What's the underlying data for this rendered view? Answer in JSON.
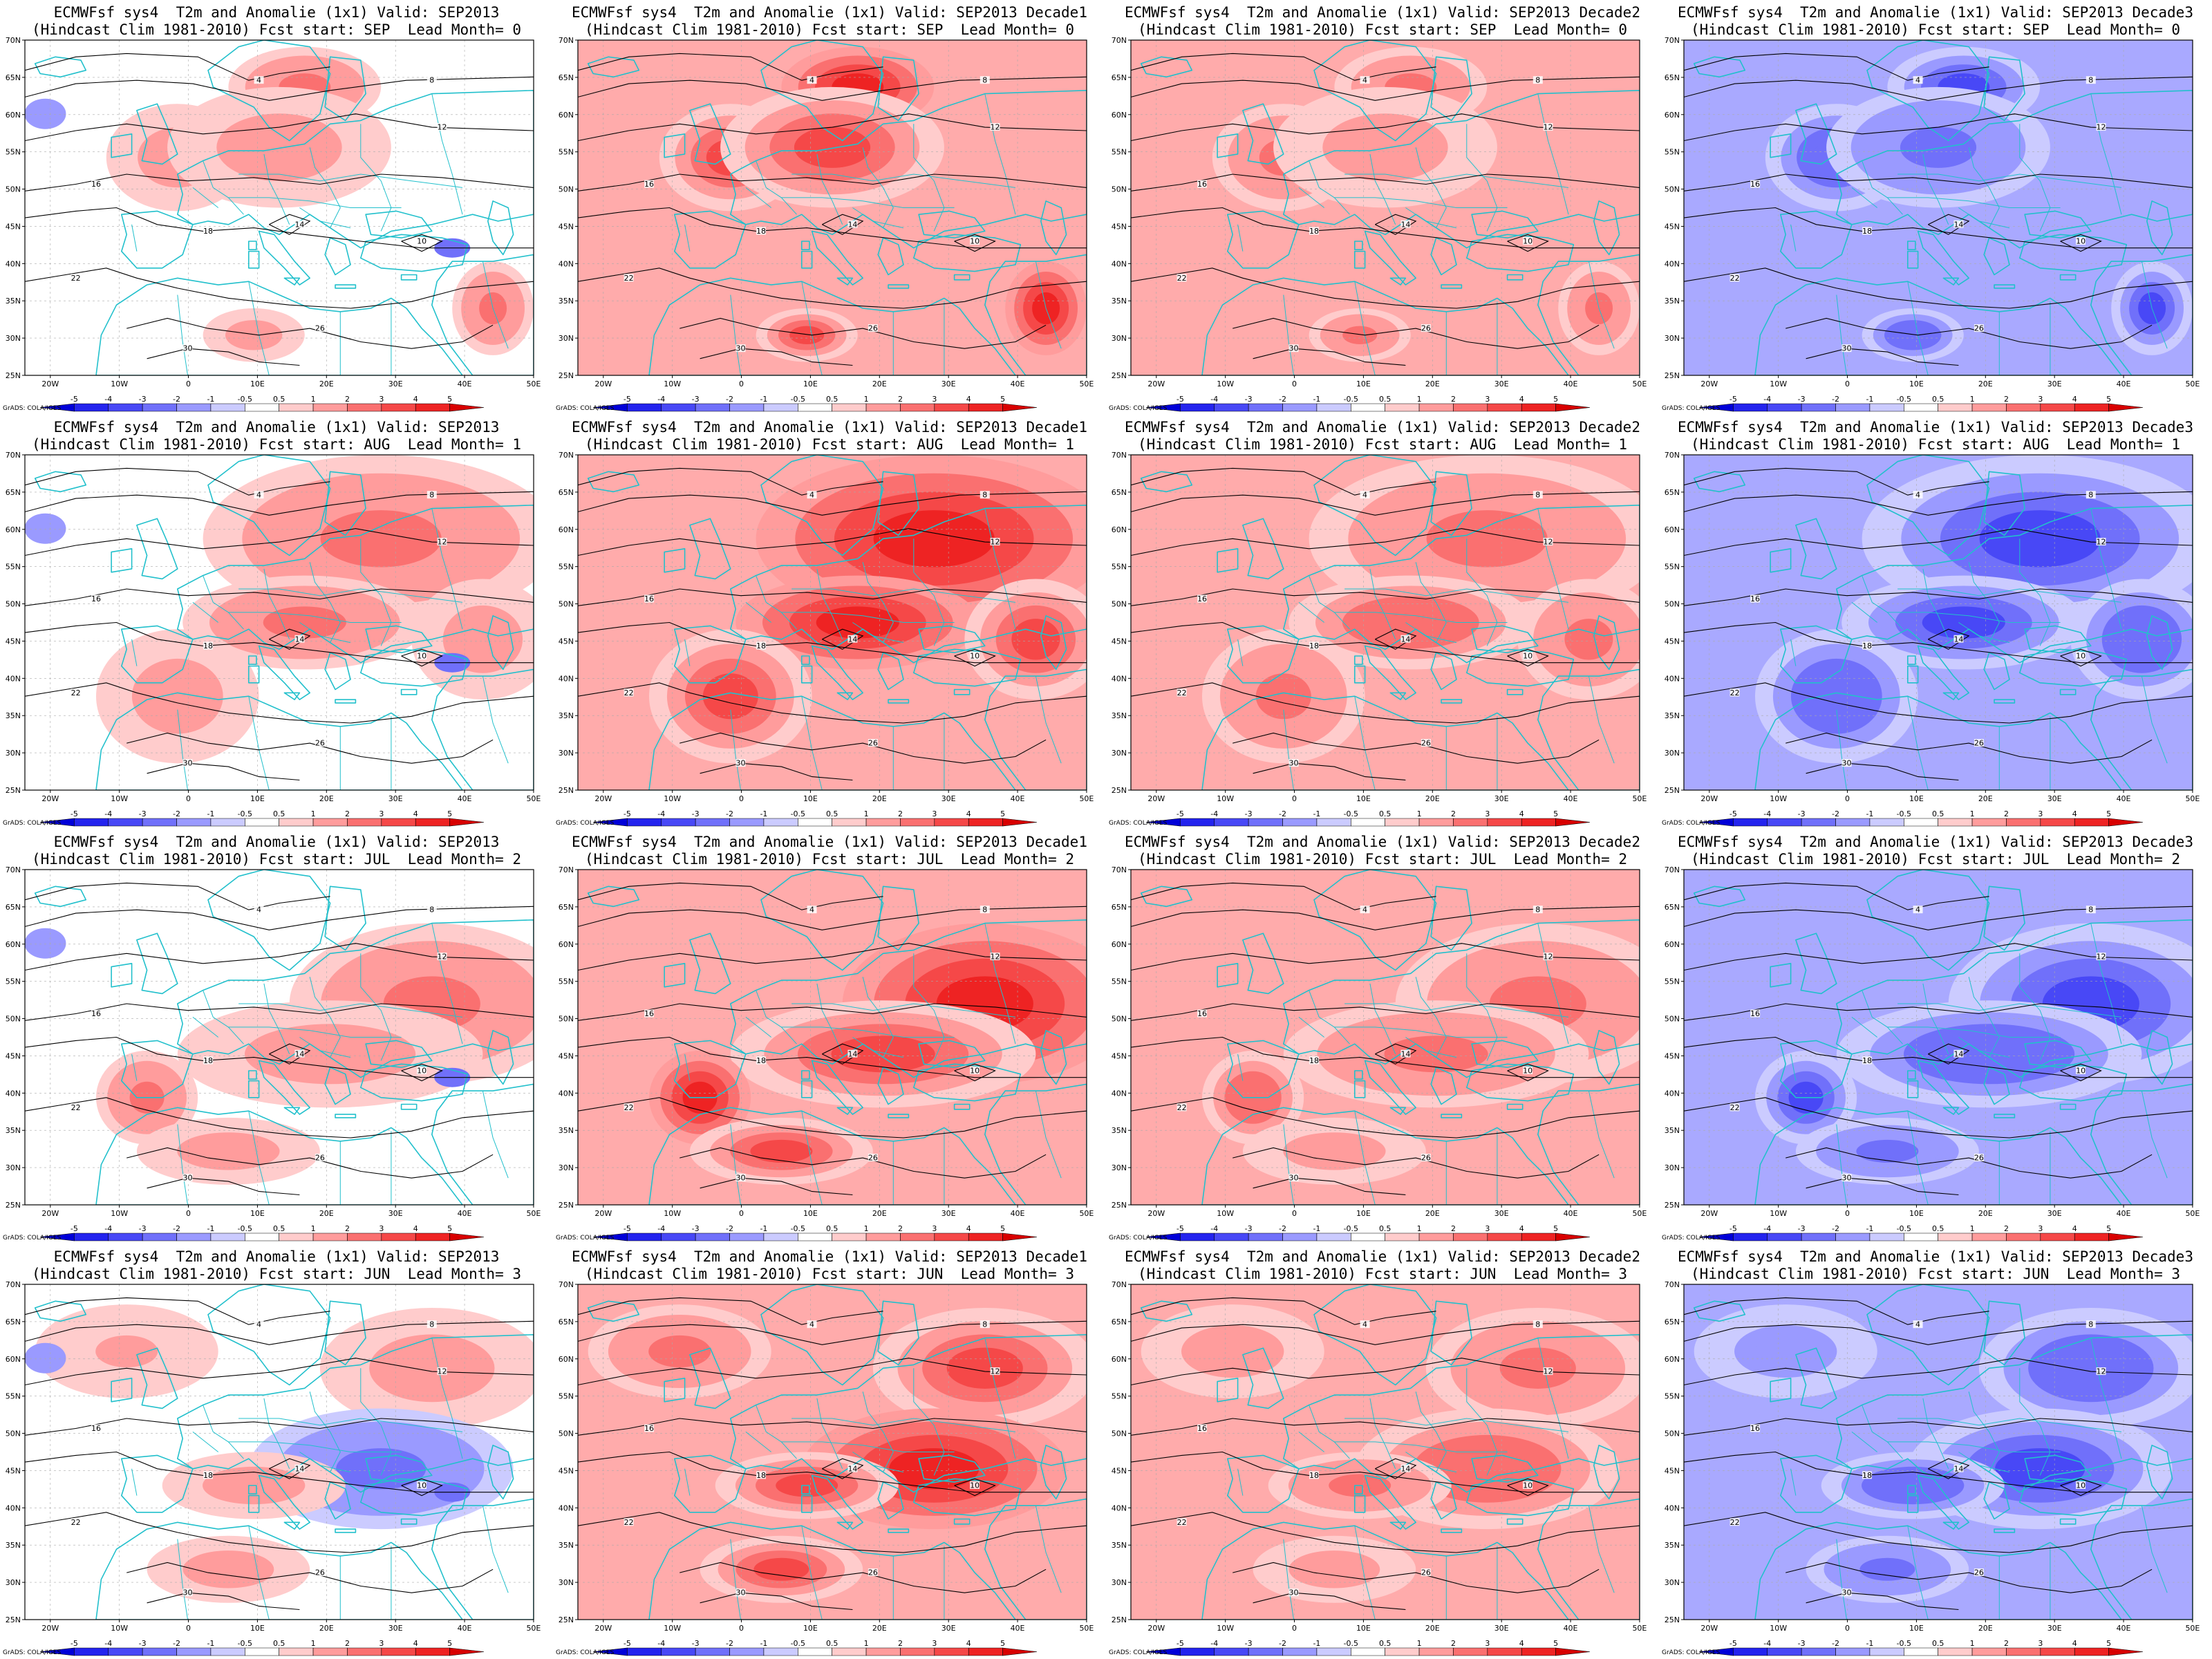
{
  "figure": {
    "line1_prefix": "ECMWFsf sys4  T2m and Anomalie (1x1) Valid: ",
    "line2_prefix": "(Hindcast Clim 1981-2010) Fcst start: ",
    "lead_prefix": "  Lead Month= ",
    "credit": "GrADS: COLA/IGES"
  },
  "columns": [
    {
      "valid": "SEP2013",
      "anomaly_sign": "mixed",
      "intensity": 0.55
    },
    {
      "valid": "SEP2013 Decade1",
      "anomaly_sign": "warm",
      "intensity": 1.0
    },
    {
      "valid": "SEP2013 Decade2",
      "anomaly_sign": "warm",
      "intensity": 0.6
    },
    {
      "valid": "SEP2013 Decade3",
      "anomaly_sign": "cold",
      "intensity": 0.8
    }
  ],
  "rows": [
    {
      "fcst_start": "SEP",
      "lead_month": "0"
    },
    {
      "fcst_start": "AUG",
      "lead_month": "1"
    },
    {
      "fcst_start": "JUL",
      "lead_month": "2"
    },
    {
      "fcst_start": "JUN",
      "lead_month": "3"
    }
  ],
  "axes": {
    "lat_labels": [
      "70N",
      "65N",
      "60N",
      "55N",
      "50N",
      "45N",
      "40N",
      "35N",
      "30N",
      "25N"
    ],
    "lon_labels": [
      "20W",
      "10W",
      "0",
      "10E",
      "20E",
      "30E",
      "40E",
      "50E"
    ]
  },
  "colorbar": {
    "labels": [
      "-5",
      "-4",
      "-3",
      "-2",
      "-1",
      "-0.5",
      "0.5",
      "1",
      "2",
      "3",
      "4",
      "5"
    ],
    "colors": [
      "#0000d8",
      "#2323ee",
      "#4848f6",
      "#7070fa",
      "#9a9aff",
      "#cbcbff",
      "#ffffff",
      "#ffcccc",
      "#ff9c9c",
      "#fa7070",
      "#f54848",
      "#ee2323",
      "#d80000"
    ]
  },
  "map_colors": {
    "coast": "#22c0cc",
    "contour": "#000000",
    "grid": "#aaaaaa"
  }
}
